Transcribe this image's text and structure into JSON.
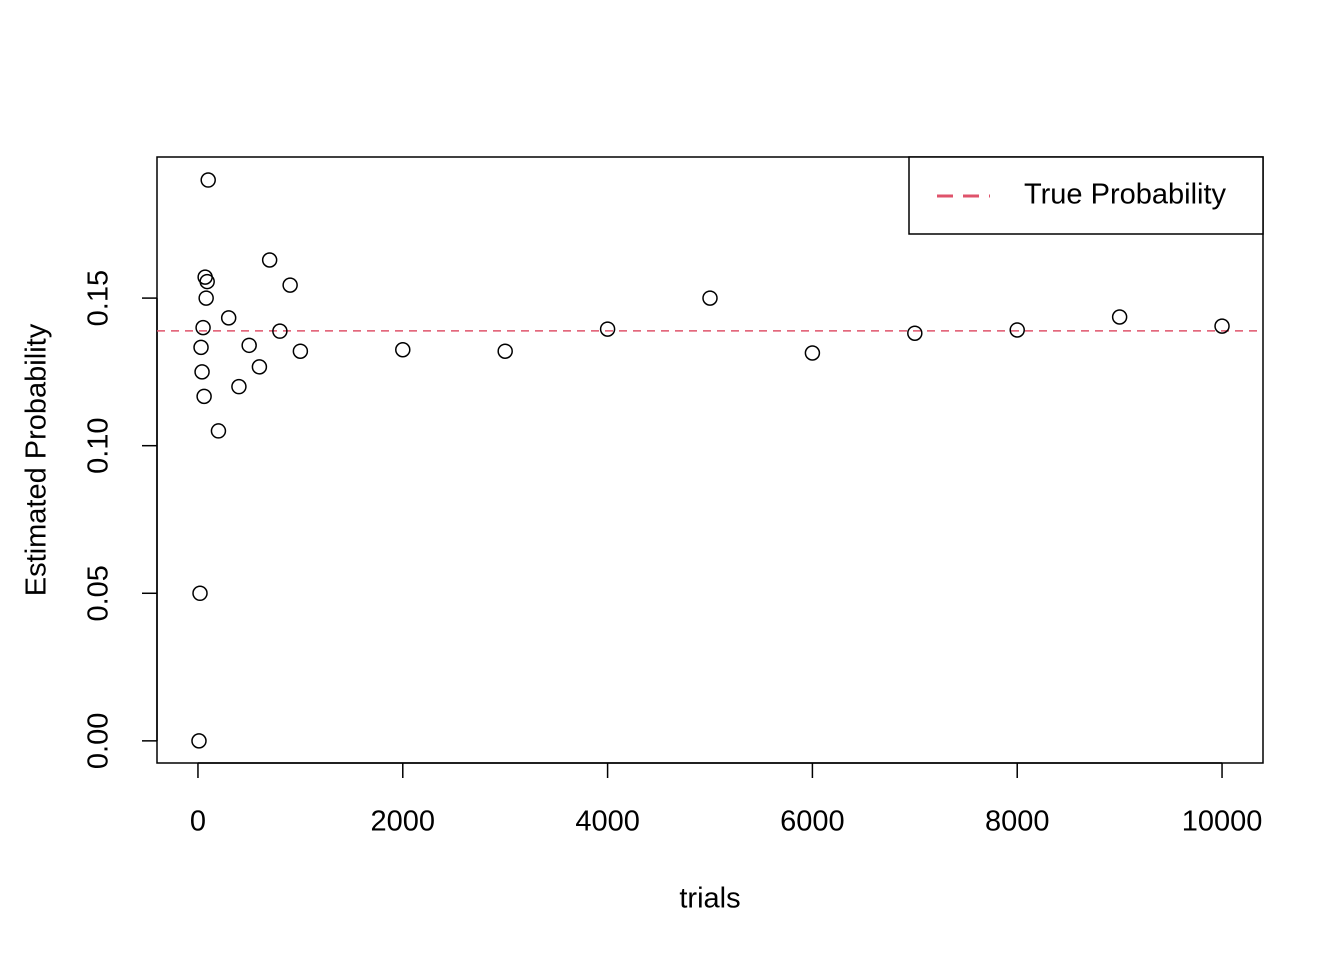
{
  "chart_data": {
    "type": "scatter",
    "xlabel": "trials",
    "ylabel": "Estimated Probability",
    "x": [
      10,
      20,
      30,
      40,
      50,
      60,
      70,
      80,
      90,
      100,
      200,
      300,
      400,
      500,
      600,
      700,
      800,
      900,
      1000,
      2000,
      3000,
      4000,
      5000,
      6000,
      7000,
      8000,
      9000,
      10000
    ],
    "values": [
      0,
      0.05,
      0.1333,
      0.125,
      0.14,
      0.1167,
      0.1571,
      0.15,
      0.1556,
      0.19,
      0.105,
      0.1433,
      0.12,
      0.134,
      0.1267,
      0.1629,
      0.1388,
      0.1544,
      0.132,
      0.1325,
      0.132,
      0.1395,
      0.15,
      0.1314,
      0.1381,
      0.1392,
      0.1436,
      0.1405
    ],
    "color": "#000000",
    "reference_lines": [
      {
        "name": "True Probability",
        "value": 0.1389,
        "color": "#DF536B",
        "style": "dashed"
      }
    ],
    "legend": "topright",
    "xlim": [
      -400,
      10400
    ],
    "ylim": [
      -0.0075,
      0.1978
    ],
    "xticks": [
      0,
      2000,
      4000,
      6000,
      8000,
      10000
    ],
    "yticks": [
      {
        "value": 0,
        "label": "0.00"
      },
      {
        "value": 0.05,
        "label": "0.05"
      },
      {
        "value": 0.1,
        "label": "0.10"
      },
      {
        "value": 0.15,
        "label": "0.15"
      }
    ]
  }
}
